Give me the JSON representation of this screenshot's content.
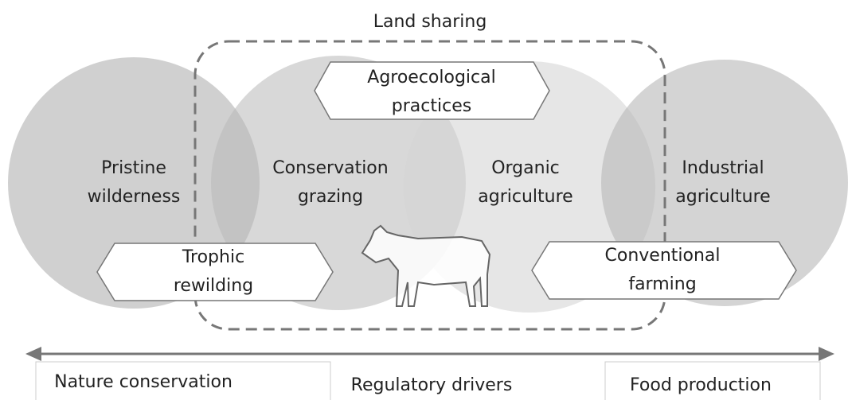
{
  "title": "Land sharing",
  "circles": [
    {
      "label": [
        "Pristine",
        "wilderness"
      ]
    },
    {
      "label": [
        "Conservation",
        "grazing"
      ]
    },
    {
      "label": [
        "Organic",
        "agriculture"
      ]
    },
    {
      "label": [
        "Industrial",
        "agriculture"
      ]
    }
  ],
  "practices": [
    {
      "label": [
        "Agroecological",
        "practices"
      ]
    },
    {
      "label": [
        "Trophic",
        "rewilding"
      ]
    },
    {
      "label": [
        "Conventional",
        "farming"
      ]
    }
  ],
  "axis": {
    "left": "Nature conservation",
    "middle": "Regulatory drivers",
    "right": "Food production"
  }
}
